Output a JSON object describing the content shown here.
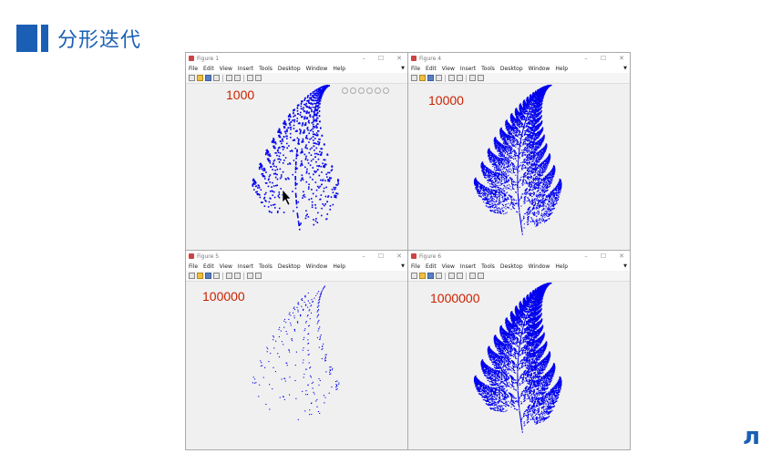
{
  "slide": {
    "title": "分形迭代",
    "accent": "#1a5fb4"
  },
  "menu_items": [
    "File",
    "Edit",
    "View",
    "Insert",
    "Tools",
    "Desktop",
    "Window",
    "Help"
  ],
  "fern_color": "#0000ee",
  "figures": [
    {
      "title": "Figure 1",
      "count_label": "1000"
    },
    {
      "title": "Figure 4",
      "count_label": "10000"
    },
    {
      "title": "Figure 5",
      "count_label": "100000"
    },
    {
      "title": "Figure 6",
      "count_label": "1000000"
    }
  ],
  "corner_glyph": "л"
}
